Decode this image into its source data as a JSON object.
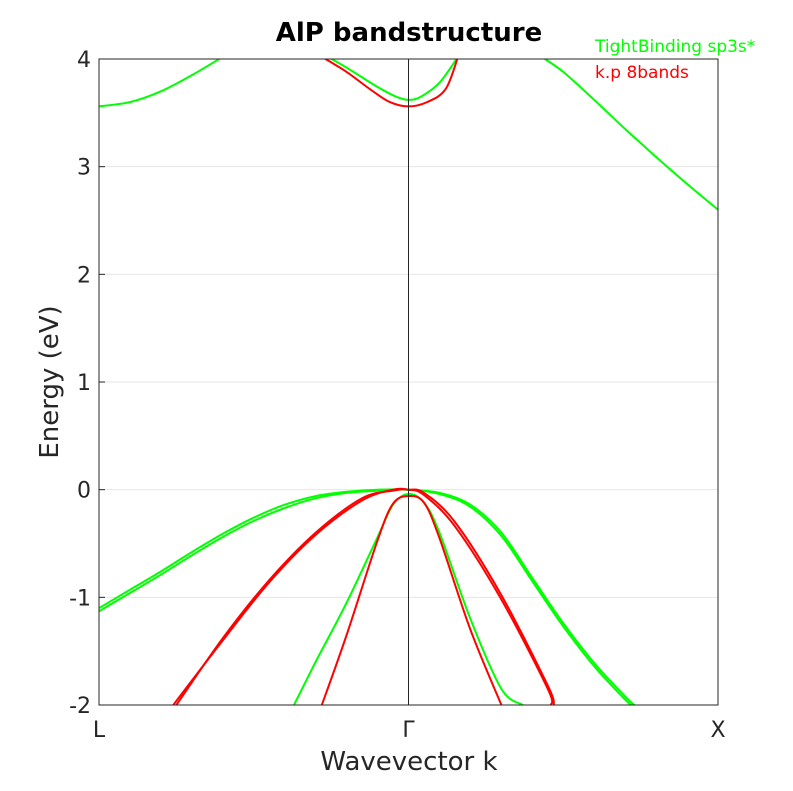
{
  "chart_data": {
    "type": "line",
    "title": "AlP bandstructure",
    "xlabel": "Wavevector k",
    "ylabel": "Energy (eV)",
    "ylim": [
      -2,
      4
    ],
    "yticks": [
      -2,
      -1,
      0,
      1,
      2,
      3,
      4
    ],
    "ytick_labels": [
      "-2",
      "-1",
      "0",
      "1",
      "2",
      "3",
      "4"
    ],
    "xlim": [
      -1,
      1
    ],
    "xticks": [
      -1,
      0,
      1
    ],
    "xtick_labels": [
      "L",
      "Γ",
      "X"
    ],
    "grid": true,
    "legend_position": "top-right",
    "gamma_line_x": 0,
    "series": [
      {
        "name": "TightBinding sp3s*",
        "color": "#00ff00",
        "lines": [
          [
            [
              -1,
              3.56
            ],
            [
              -0.9,
              3.6
            ],
            [
              -0.8,
              3.7
            ],
            [
              -0.7,
              3.85
            ],
            [
              -0.6,
              4.02
            ]
          ],
          [
            [
              -0.28,
              4.05
            ],
            [
              -0.2,
              3.92
            ],
            [
              -0.1,
              3.74
            ],
            [
              -0.04,
              3.65
            ],
            [
              0,
              3.62
            ],
            [
              0.04,
              3.65
            ],
            [
              0.1,
              3.78
            ],
            [
              0.16,
              4.02
            ]
          ],
          [
            [
              0.43,
              4.02
            ],
            [
              0.5,
              3.88
            ],
            [
              0.6,
              3.62
            ],
            [
              0.7,
              3.35
            ],
            [
              0.8,
              3.09
            ],
            [
              0.9,
              2.84
            ],
            [
              1,
              2.6
            ]
          ],
          [
            [
              -1,
              -1.1
            ],
            [
              -0.9,
              -0.93
            ],
            [
              -0.8,
              -0.76
            ],
            [
              -0.7,
              -0.58
            ],
            [
              -0.6,
              -0.41
            ],
            [
              -0.5,
              -0.26
            ],
            [
              -0.4,
              -0.14
            ],
            [
              -0.3,
              -0.06
            ],
            [
              -0.2,
              -0.02
            ],
            [
              -0.1,
              0
            ],
            [
              0,
              0
            ],
            [
              0.1,
              -0.03
            ],
            [
              0.2,
              -0.14
            ],
            [
              0.3,
              -0.4
            ],
            [
              0.4,
              -0.82
            ],
            [
              0.5,
              -1.24
            ],
            [
              0.6,
              -1.61
            ],
            [
              0.7,
              -1.92
            ],
            [
              0.73,
              -2
            ]
          ],
          [
            [
              -1,
              -1.13
            ],
            [
              -0.9,
              -0.96
            ],
            [
              -0.8,
              -0.79
            ],
            [
              -0.7,
              -0.61
            ],
            [
              -0.6,
              -0.44
            ],
            [
              -0.5,
              -0.29
            ],
            [
              -0.4,
              -0.17
            ],
            [
              -0.3,
              -0.08
            ],
            [
              -0.2,
              -0.03
            ],
            [
              -0.1,
              -0.01
            ],
            [
              0,
              0
            ],
            [
              0.1,
              -0.04
            ],
            [
              0.2,
              -0.16
            ],
            [
              0.3,
              -0.43
            ],
            [
              0.4,
              -0.85
            ],
            [
              0.5,
              -1.27
            ],
            [
              0.6,
              -1.64
            ],
            [
              0.7,
              -1.95
            ],
            [
              0.72,
              -2
            ]
          ],
          [
            [
              -0.37,
              -2
            ],
            [
              -0.3,
              -1.6
            ],
            [
              -0.2,
              -1.05
            ],
            [
              -0.1,
              -0.44
            ],
            [
              -0.05,
              -0.14
            ],
            [
              0,
              -0.04
            ],
            [
              0.05,
              -0.12
            ],
            [
              0.1,
              -0.4
            ],
            [
              0.2,
              -1.2
            ],
            [
              0.3,
              -1.85
            ],
            [
              0.37,
              -2
            ]
          ]
        ]
      },
      {
        "name": "k.p 8bands",
        "color": "#ff0000",
        "lines": [
          [
            [
              -0.28,
              4.02
            ],
            [
              -0.2,
              3.88
            ],
            [
              -0.12,
              3.71
            ],
            [
              -0.06,
              3.6
            ],
            [
              0,
              3.56
            ],
            [
              0.06,
              3.6
            ],
            [
              0.12,
              3.72
            ],
            [
              0.16,
              4.02
            ]
          ],
          [
            [
              -0.76,
              -2
            ],
            [
              -0.6,
              -1.4
            ],
            [
              -0.45,
              -0.86
            ],
            [
              -0.3,
              -0.42
            ],
            [
              -0.15,
              -0.1
            ],
            [
              -0.05,
              0
            ],
            [
              0,
              0
            ],
            [
              0.05,
              -0.03
            ],
            [
              0.15,
              -0.3
            ],
            [
              0.3,
              -0.98
            ],
            [
              0.45,
              -1.82
            ],
            [
              0.47,
              -2
            ]
          ],
          [
            [
              -0.75,
              -2
            ],
            [
              -0.6,
              -1.38
            ],
            [
              -0.45,
              -0.84
            ],
            [
              -0.3,
              -0.4
            ],
            [
              -0.15,
              -0.08
            ],
            [
              -0.05,
              -0.01
            ],
            [
              0,
              0
            ],
            [
              0.05,
              -0.05
            ],
            [
              0.15,
              -0.34
            ],
            [
              0.3,
              -1.02
            ],
            [
              0.45,
              -1.85
            ],
            [
              0.46,
              -2
            ]
          ],
          [
            [
              -0.28,
              -2
            ],
            [
              -0.2,
              -1.35
            ],
            [
              -0.1,
              -0.47
            ],
            [
              -0.05,
              -0.13
            ],
            [
              0,
              -0.06
            ],
            [
              0.05,
              -0.12
            ],
            [
              0.1,
              -0.45
            ],
            [
              0.2,
              -1.3
            ],
            [
              0.3,
              -2
            ]
          ]
        ]
      }
    ]
  }
}
